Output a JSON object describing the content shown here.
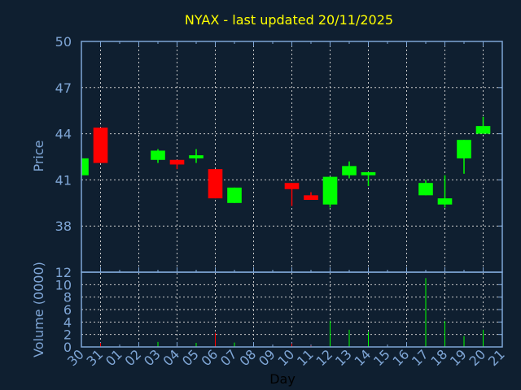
{
  "chart_data": {
    "type": "candlestick",
    "title": "NYAX - last updated 20/11/2025",
    "xlabel": "Day",
    "price_panel": {
      "ylabel": "Price",
      "ylim": [
        35,
        50
      ],
      "yticks": [
        38,
        41,
        44,
        47,
        50
      ]
    },
    "volume_panel": {
      "ylabel": "Volume (0000)",
      "ylim": [
        0,
        12
      ],
      "yticks": [
        0,
        2,
        4,
        6,
        8,
        10,
        12
      ]
    },
    "x_tick_labels": [
      "30",
      "31",
      "01",
      "02",
      "03",
      "04",
      "05",
      "06",
      "07",
      "08",
      "09",
      "10",
      "11",
      "12",
      "13",
      "14",
      "15",
      "16",
      "17",
      "18",
      "19",
      "20",
      "21"
    ],
    "grid": true,
    "colors": {
      "up": "#00ff00",
      "down": "#ff0000",
      "title": "#ffff00",
      "axis": "#7fa6d6",
      "background": "#0f1f30",
      "grid": "#c8c8c8"
    },
    "candles": [
      {
        "day": "30",
        "open": 41.3,
        "high": 42.4,
        "low": 41.3,
        "close": 42.4,
        "volume": 0
      },
      {
        "day": "31",
        "open": 44.4,
        "high": 44.4,
        "low": 42.1,
        "close": 42.1,
        "volume": 0.65
      },
      {
        "day": "03",
        "open": 42.3,
        "high": 43.0,
        "low": 42.1,
        "close": 42.9,
        "volume": 0.8
      },
      {
        "day": "04",
        "open": 42.3,
        "high": 42.3,
        "low": 41.7,
        "close": 42.0,
        "volume": 0.1
      },
      {
        "day": "05",
        "open": 42.4,
        "high": 43.0,
        "low": 42.1,
        "close": 42.6,
        "volume": 0.65
      },
      {
        "day": "06",
        "open": 41.7,
        "high": 41.7,
        "low": 39.8,
        "close": 39.8,
        "volume": 2.25
      },
      {
        "day": "07",
        "open": 39.5,
        "high": 40.5,
        "low": 39.5,
        "close": 40.5,
        "volume": 0.7
      },
      {
        "day": "10",
        "open": 40.8,
        "high": 40.8,
        "low": 39.3,
        "close": 40.4,
        "volume": 0.55
      },
      {
        "day": "11",
        "open": 40.0,
        "high": 40.2,
        "low": 39.7,
        "close": 39.7,
        "volume": 0.2
      },
      {
        "day": "12",
        "open": 39.4,
        "high": 41.2,
        "low": 39.2,
        "close": 41.2,
        "volume": 4.2
      },
      {
        "day": "13",
        "open": 41.3,
        "high": 42.2,
        "low": 41.1,
        "close": 41.9,
        "volume": 2.75
      },
      {
        "day": "14",
        "open": 41.3,
        "high": 41.5,
        "low": 40.6,
        "close": 41.5,
        "volume": 2.4
      },
      {
        "day": "17",
        "open": 40.0,
        "high": 41.0,
        "low": 40.0,
        "close": 40.8,
        "volume": 11.05
      },
      {
        "day": "18",
        "open": 39.4,
        "high": 41.3,
        "low": 39.2,
        "close": 39.8,
        "volume": 4.15
      },
      {
        "day": "19",
        "open": 42.4,
        "high": 43.6,
        "low": 41.4,
        "close": 43.6,
        "volume": 1.75
      },
      {
        "day": "20",
        "open": 44.0,
        "high": 45.1,
        "low": 44.0,
        "close": 44.5,
        "volume": 2.75
      }
    ]
  }
}
